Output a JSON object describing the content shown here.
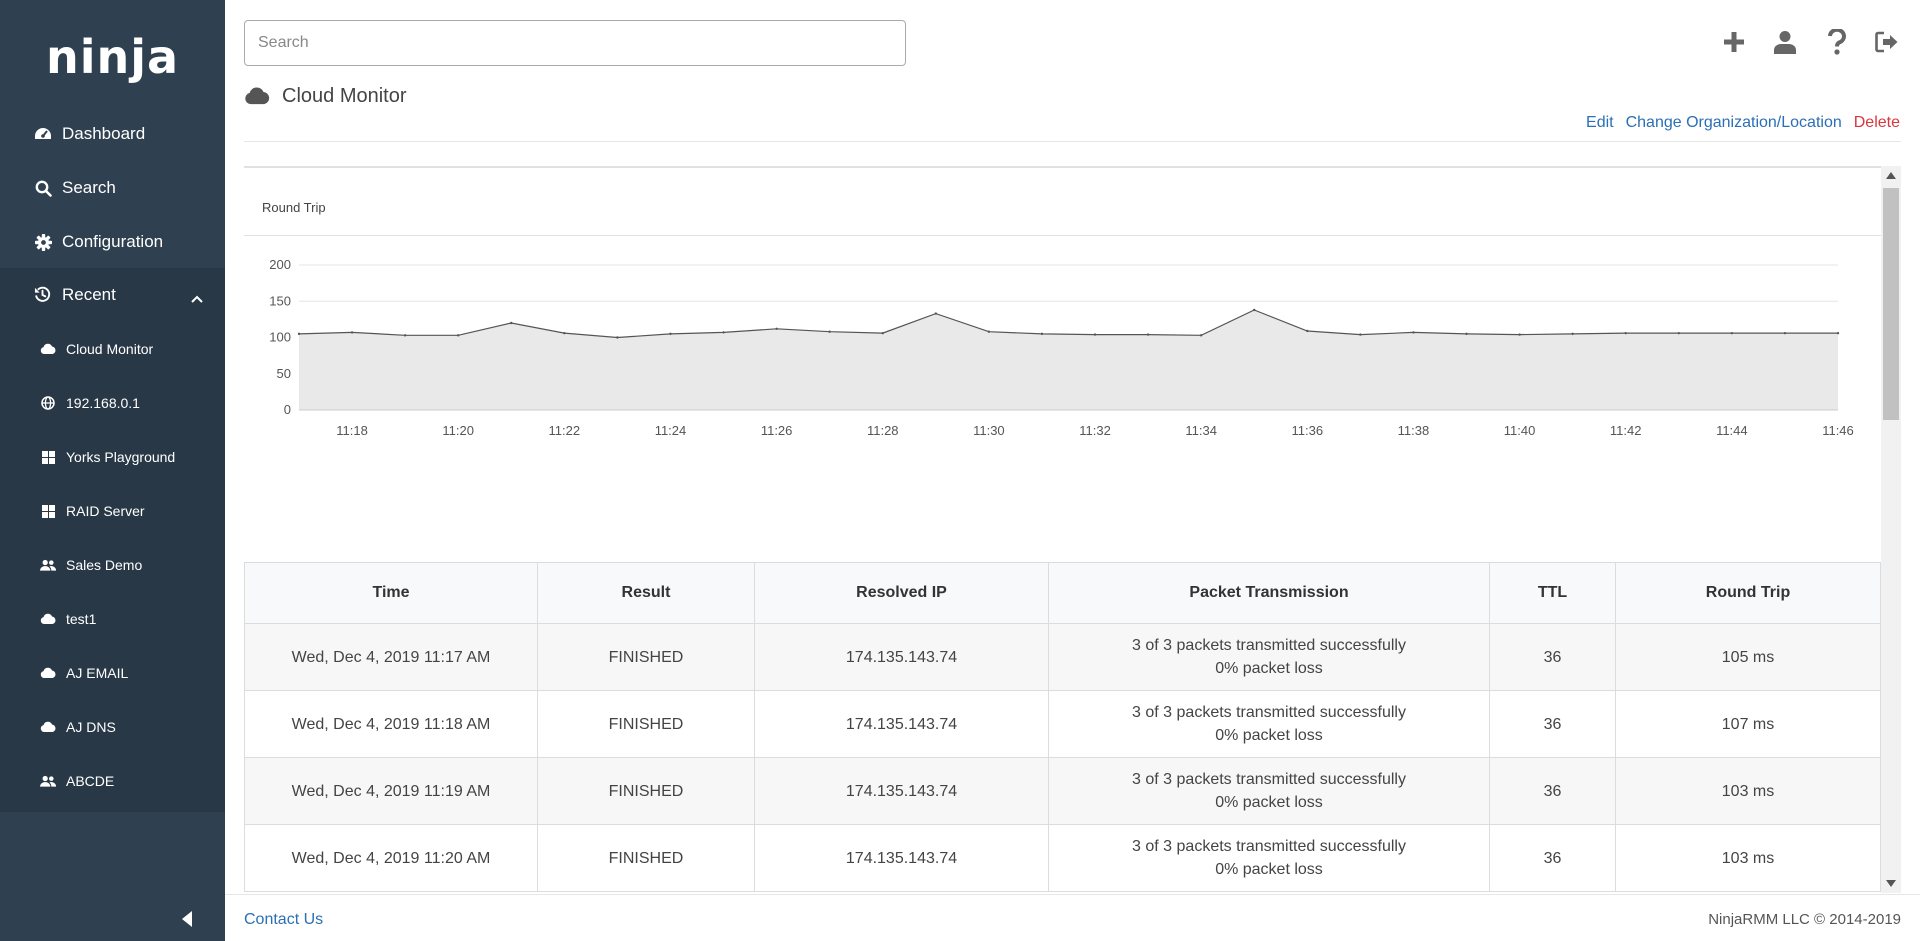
{
  "sidebar": {
    "logo": "ninja",
    "nav": [
      {
        "label": "Dashboard",
        "icon": "dashboard-icon"
      },
      {
        "label": "Search",
        "icon": "search-icon"
      },
      {
        "label": "Configuration",
        "icon": "gear-icon"
      }
    ],
    "recent_label": "Recent",
    "recent_items": [
      {
        "label": "Cloud Monitor",
        "icon": "cloud-icon"
      },
      {
        "label": "192.168.0.1",
        "icon": "globe-icon"
      },
      {
        "label": "Yorks Playground",
        "icon": "windows-icon"
      },
      {
        "label": "RAID Server",
        "icon": "windows-icon"
      },
      {
        "label": "Sales Demo",
        "icon": "users-icon"
      },
      {
        "label": "test1",
        "icon": "cloud-icon"
      },
      {
        "label": "AJ EMAIL",
        "icon": "cloud-icon"
      },
      {
        "label": "AJ DNS",
        "icon": "cloud-icon"
      },
      {
        "label": "ABCDE",
        "icon": "users-icon"
      }
    ]
  },
  "search": {
    "placeholder": "Search"
  },
  "page": {
    "title": "Cloud Monitor",
    "actions": {
      "edit": "Edit",
      "change_org": "Change Organization/Location",
      "delete": "Delete"
    }
  },
  "chart_data": {
    "type": "area",
    "title": "Round Trip",
    "ylim": [
      0,
      200
    ],
    "yticks": [
      0,
      50,
      100,
      150,
      200
    ],
    "x": [
      "11:17",
      "11:18",
      "11:19",
      "11:20",
      "11:21",
      "11:22",
      "11:23",
      "11:24",
      "11:25",
      "11:26",
      "11:27",
      "11:28",
      "11:29",
      "11:30",
      "11:31",
      "11:32",
      "11:33",
      "11:34",
      "11:35",
      "11:36",
      "11:37",
      "11:38",
      "11:39",
      "11:40",
      "11:41",
      "11:42",
      "11:43",
      "11:44",
      "11:45",
      "11:46"
    ],
    "xticks": [
      "11:18",
      "11:20",
      "11:22",
      "11:24",
      "11:26",
      "11:28",
      "11:30",
      "11:32",
      "11:34",
      "11:36",
      "11:38",
      "11:40",
      "11:42",
      "11:44",
      "11:46"
    ],
    "values": [
      105,
      107,
      103,
      103,
      120,
      106,
      100,
      105,
      107,
      112,
      108,
      106,
      133,
      108,
      105,
      104,
      104,
      103,
      138,
      109,
      104,
      107,
      105,
      104,
      105,
      106,
      106,
      106,
      106,
      106
    ],
    "grid": true,
    "colors": {
      "line": "#555555",
      "fill": "#e9e9e9",
      "grid": "#e6e6e6"
    }
  },
  "table": {
    "columns": [
      "Time",
      "Result",
      "Resolved IP",
      "Packet Transmission",
      "TTL",
      "Round Trip"
    ],
    "rows": [
      {
        "time": "Wed, Dec 4, 2019 11:17 AM",
        "result": "FINISHED",
        "ip": "174.135.143.74",
        "packets": "3 of 3 packets transmitted successfully",
        "loss": "0% packet loss",
        "ttl": "36",
        "rt": "105 ms"
      },
      {
        "time": "Wed, Dec 4, 2019 11:18 AM",
        "result": "FINISHED",
        "ip": "174.135.143.74",
        "packets": "3 of 3 packets transmitted successfully",
        "loss": "0% packet loss",
        "ttl": "36",
        "rt": "107 ms"
      },
      {
        "time": "Wed, Dec 4, 2019 11:19 AM",
        "result": "FINISHED",
        "ip": "174.135.143.74",
        "packets": "3 of 3 packets transmitted successfully",
        "loss": "0% packet loss",
        "ttl": "36",
        "rt": "103 ms"
      },
      {
        "time": "Wed, Dec 4, 2019 11:20 AM",
        "result": "FINISHED",
        "ip": "174.135.143.74",
        "packets": "3 of 3 packets transmitted successfully",
        "loss": "0% packet loss",
        "ttl": "36",
        "rt": "103 ms"
      }
    ]
  },
  "footer": {
    "contact": "Contact Us",
    "copyright": "NinjaRMM LLC © 2014-2019"
  }
}
